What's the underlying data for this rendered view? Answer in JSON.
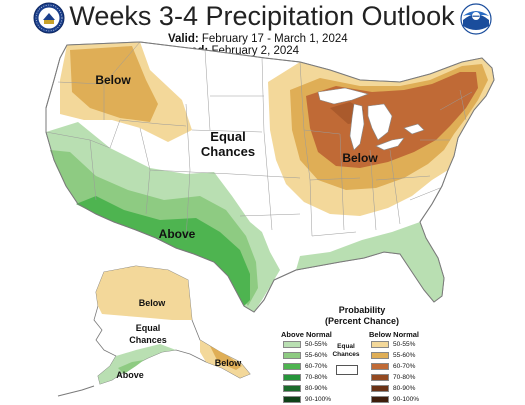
{
  "header": {
    "title": "Weeks 3-4 Precipitation Outlook",
    "valid_label": "Valid:",
    "valid_value": "February 17 - March 1, 2024",
    "issued_label": "Issued:",
    "issued_value": "February 2, 2024"
  },
  "map_labels": {
    "nw_below": "Below",
    "equal_chances_1": "Equal",
    "equal_chances_2": "Chances",
    "east_below": "Below",
    "sw_above": "Above",
    "ak_below": "Below",
    "ak_equal_1": "Equal",
    "ak_equal_2": "Chances",
    "ak_above": "Above",
    "ak_se_below": "Below"
  },
  "legend": {
    "title_line1": "Probability",
    "title_line2": "(Percent Chance)",
    "above_header": "Above Normal",
    "below_header": "Below Normal",
    "equal_line1": "Equal",
    "equal_line2": "Chances",
    "above": [
      {
        "label": "50-55%",
        "color": "#b9dfb2"
      },
      {
        "label": "55-60%",
        "color": "#8ecb82"
      },
      {
        "label": "60-70%",
        "color": "#4eb450"
      },
      {
        "label": "70-80%",
        "color": "#26953a"
      },
      {
        "label": "80-90%",
        "color": "#1b6b2b"
      },
      {
        "label": "90-100%",
        "color": "#0f4118"
      }
    ],
    "below": [
      {
        "label": "50-55%",
        "color": "#f3d89a"
      },
      {
        "label": "55-60%",
        "color": "#dfae56"
      },
      {
        "label": "60-70%",
        "color": "#c06a36"
      },
      {
        "label": "70-80%",
        "color": "#944a22"
      },
      {
        "label": "80-90%",
        "color": "#6a3216"
      },
      {
        "label": "90-100%",
        "color": "#3e1d0b"
      }
    ]
  },
  "colors": {
    "above_50_55": "#b9dfb2",
    "above_55_60": "#8ecb82",
    "above_60_70": "#4eb450",
    "above_70_80": "#26953a",
    "below_50_55": "#f3d89a",
    "below_55_60": "#dfae56",
    "below_60_70": "#c06a36",
    "below_70_80": "#944a22"
  },
  "icons": {
    "left_logo": "noaa-commerce-seal-icon",
    "right_logo": "noaa-logo-icon"
  }
}
